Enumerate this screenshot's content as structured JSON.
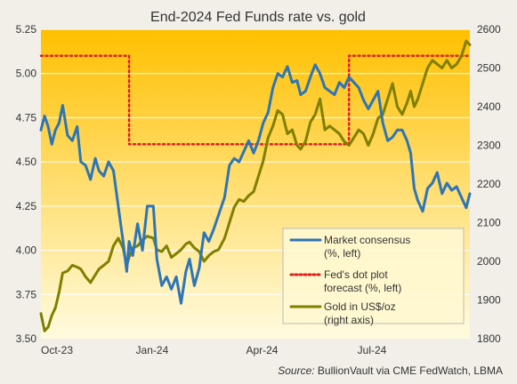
{
  "chart_data": {
    "type": "line",
    "title": "End-2024 Fed Funds rate vs. gold",
    "source_label": "Source:",
    "source_text": "BullionVault via CME FedWatch, LBMA",
    "x_ticks": [
      "Oct-23",
      "Jan-24",
      "Apr-24",
      "Jul-24"
    ],
    "x_tick_dates": [
      "2023-10-01",
      "2024-01-01",
      "2024-04-01",
      "2024-07-01"
    ],
    "x_range": [
      "2023-10-01",
      "2024-09-20"
    ],
    "left_axis": {
      "ylim": [
        3.5,
        5.25
      ],
      "ticks": [
        "3.50",
        "3.75",
        "4.00",
        "4.25",
        "4.50",
        "4.75",
        "5.00",
        "5.25"
      ]
    },
    "right_axis": {
      "ylim": [
        1800,
        2600
      ],
      "ticks": [
        "1800",
        "1900",
        "2000",
        "2100",
        "2200",
        "2300",
        "2400",
        "2500",
        "2600"
      ]
    },
    "legend": {
      "placement": "lower-right"
    },
    "series": [
      {
        "name": "Market consensus (%, left)",
        "axis": "left",
        "color": "#2e75b6",
        "style": "solid",
        "x": [
          "2023-10-01",
          "2023-10-04",
          "2023-10-07",
          "2023-10-10",
          "2023-10-13",
          "2023-10-16",
          "2023-10-19",
          "2023-10-23",
          "2023-10-27",
          "2023-10-31",
          "2023-11-03",
          "2023-11-07",
          "2023-11-11",
          "2023-11-15",
          "2023-11-18",
          "2023-11-22",
          "2023-11-26",
          "2023-11-30",
          "2023-12-04",
          "2023-12-08",
          "2023-12-11",
          "2023-12-13",
          "2023-12-16",
          "2023-12-20",
          "2023-12-24",
          "2023-12-28",
          "2024-01-02",
          "2024-01-05",
          "2024-01-09",
          "2024-01-13",
          "2024-01-17",
          "2024-01-21",
          "2024-01-25",
          "2024-01-29",
          "2024-02-01",
          "2024-02-05",
          "2024-02-09",
          "2024-02-13",
          "2024-02-17",
          "2024-02-21",
          "2024-02-25",
          "2024-03-01",
          "2024-03-05",
          "2024-03-09",
          "2024-03-13",
          "2024-03-17",
          "2024-03-21",
          "2024-03-25",
          "2024-03-29",
          "2024-04-02",
          "2024-04-06",
          "2024-04-10",
          "2024-04-14",
          "2024-04-18",
          "2024-04-22",
          "2024-04-26",
          "2024-04-30",
          "2024-05-03",
          "2024-05-07",
          "2024-05-11",
          "2024-05-15",
          "2024-05-19",
          "2024-05-23",
          "2024-05-27",
          "2024-05-31",
          "2024-06-04",
          "2024-06-08",
          "2024-06-12",
          "2024-06-16",
          "2024-06-20",
          "2024-06-24",
          "2024-06-28",
          "2024-07-02",
          "2024-07-06",
          "2024-07-10",
          "2024-07-14",
          "2024-07-18",
          "2024-07-22",
          "2024-07-26",
          "2024-07-30",
          "2024-08-02",
          "2024-08-05",
          "2024-08-08",
          "2024-08-12",
          "2024-08-16",
          "2024-08-20",
          "2024-08-24",
          "2024-08-28",
          "2024-09-01",
          "2024-09-05",
          "2024-09-09",
          "2024-09-13",
          "2024-09-17",
          "2024-09-20"
        ],
        "values": [
          4.68,
          4.76,
          4.7,
          4.6,
          4.68,
          4.72,
          4.82,
          4.65,
          4.62,
          4.7,
          4.5,
          4.48,
          4.4,
          4.52,
          4.45,
          4.42,
          4.5,
          4.45,
          4.25,
          4.05,
          3.88,
          4.05,
          3.97,
          4.15,
          4.0,
          4.25,
          4.25,
          3.95,
          3.8,
          3.85,
          3.78,
          3.85,
          3.7,
          3.88,
          3.95,
          3.8,
          3.9,
          4.1,
          4.05,
          4.12,
          4.2,
          4.3,
          4.48,
          4.52,
          4.5,
          4.56,
          4.62,
          4.55,
          4.62,
          4.72,
          4.78,
          4.92,
          5.0,
          4.98,
          5.04,
          4.95,
          4.96,
          4.88,
          4.9,
          4.98,
          5.05,
          5.0,
          4.92,
          4.9,
          4.88,
          4.95,
          4.92,
          4.98,
          4.95,
          4.92,
          4.85,
          4.8,
          4.85,
          4.9,
          4.72,
          4.62,
          4.64,
          4.68,
          4.68,
          4.62,
          4.55,
          4.35,
          4.28,
          4.22,
          4.35,
          4.38,
          4.44,
          4.32,
          4.38,
          4.34,
          4.36,
          4.3,
          4.24,
          4.32
        ]
      },
      {
        "name": "Fed's dot plot forecast (%, left)",
        "axis": "left",
        "color": "#e02020",
        "style": "dotted",
        "x": [
          "2023-10-01",
          "2023-12-13",
          "2023-12-13",
          "2024-06-12",
          "2024-06-12",
          "2024-09-20"
        ],
        "values": [
          5.1,
          5.1,
          4.6,
          4.6,
          5.1,
          5.1
        ]
      },
      {
        "name": "Gold in US$/oz (right axis)",
        "axis": "right",
        "color": "#7f7f00",
        "style": "solid",
        "x": [
          "2023-10-01",
          "2023-10-04",
          "2023-10-07",
          "2023-10-10",
          "2023-10-13",
          "2023-10-16",
          "2023-10-19",
          "2023-10-23",
          "2023-10-27",
          "2023-10-31",
          "2023-11-03",
          "2023-11-07",
          "2023-11-11",
          "2023-11-15",
          "2023-11-18",
          "2023-11-22",
          "2023-11-26",
          "2023-11-30",
          "2023-12-04",
          "2023-12-08",
          "2023-12-11",
          "2023-12-13",
          "2023-12-16",
          "2023-12-20",
          "2023-12-24",
          "2023-12-28",
          "2024-01-02",
          "2024-01-05",
          "2024-01-09",
          "2024-01-13",
          "2024-01-17",
          "2024-01-21",
          "2024-01-25",
          "2024-01-29",
          "2024-02-01",
          "2024-02-05",
          "2024-02-09",
          "2024-02-13",
          "2024-02-17",
          "2024-02-21",
          "2024-02-25",
          "2024-03-01",
          "2024-03-05",
          "2024-03-09",
          "2024-03-13",
          "2024-03-17",
          "2024-03-21",
          "2024-03-25",
          "2024-03-29",
          "2024-04-02",
          "2024-04-06",
          "2024-04-10",
          "2024-04-14",
          "2024-04-18",
          "2024-04-22",
          "2024-04-26",
          "2024-04-30",
          "2024-05-03",
          "2024-05-07",
          "2024-05-11",
          "2024-05-15",
          "2024-05-19",
          "2024-05-23",
          "2024-05-27",
          "2024-05-31",
          "2024-06-04",
          "2024-06-08",
          "2024-06-12",
          "2024-06-16",
          "2024-06-20",
          "2024-06-24",
          "2024-06-28",
          "2024-07-02",
          "2024-07-06",
          "2024-07-10",
          "2024-07-14",
          "2024-07-18",
          "2024-07-22",
          "2024-07-26",
          "2024-07-30",
          "2024-08-02",
          "2024-08-05",
          "2024-08-08",
          "2024-08-12",
          "2024-08-16",
          "2024-08-20",
          "2024-08-24",
          "2024-08-28",
          "2024-09-01",
          "2024-09-05",
          "2024-09-09",
          "2024-09-13",
          "2024-09-17",
          "2024-09-20"
        ],
        "values": [
          1865,
          1820,
          1830,
          1860,
          1880,
          1920,
          1970,
          1975,
          1990,
          1985,
          1980,
          1960,
          1945,
          1965,
          1980,
          1990,
          2000,
          2040,
          2060,
          2035,
          1990,
          2010,
          2035,
          2040,
          2055,
          2065,
          2060,
          2030,
          2025,
          2040,
          2010,
          2020,
          2030,
          2045,
          2050,
          2035,
          2025,
          2000,
          2015,
          2025,
          2030,
          2060,
          2100,
          2140,
          2160,
          2155,
          2170,
          2180,
          2220,
          2260,
          2320,
          2350,
          2390,
          2380,
          2330,
          2340,
          2300,
          2290,
          2310,
          2360,
          2380,
          2420,
          2340,
          2350,
          2340,
          2330,
          2310,
          2300,
          2320,
          2340,
          2330,
          2300,
          2330,
          2370,
          2380,
          2420,
          2460,
          2400,
          2380,
          2410,
          2440,
          2400,
          2420,
          2460,
          2500,
          2520,
          2510,
          2500,
          2520,
          2500,
          2510,
          2530,
          2570,
          2560
        ]
      }
    ]
  }
}
